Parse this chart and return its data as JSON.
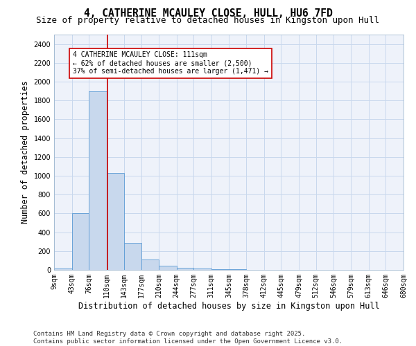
{
  "title": "4, CATHERINE MCAULEY CLOSE, HULL, HU6 7FD",
  "subtitle": "Size of property relative to detached houses in Kingston upon Hull",
  "xlabel": "Distribution of detached houses by size in Kingston upon Hull",
  "ylabel": "Number of detached properties",
  "bar_edges": [
    9,
    43,
    76,
    110,
    143,
    177,
    210,
    244,
    277,
    311,
    345,
    378,
    412,
    445,
    479,
    512,
    546,
    579,
    613,
    646,
    680
  ],
  "bar_heights": [
    15,
    600,
    1900,
    1030,
    290,
    110,
    45,
    20,
    15,
    5,
    5,
    0,
    0,
    0,
    0,
    0,
    0,
    0,
    0,
    0
  ],
  "bar_color": "#c8d8ed",
  "bar_edge_color": "#5b9bd5",
  "grid_color": "#c8d8ed",
  "background_color": "#ffffff",
  "plot_bg_color": "#eef2fa",
  "property_line_x": 111,
  "property_line_color": "#cc0000",
  "annotation_text": "4 CATHERINE MCAULEY CLOSE: 111sqm\n← 62% of detached houses are smaller (2,500)\n37% of semi-detached houses are larger (1,471) →",
  "annotation_box_color": "#ffffff",
  "annotation_box_edge_color": "#cc0000",
  "ylim": [
    0,
    2500
  ],
  "yticks": [
    0,
    200,
    400,
    600,
    800,
    1000,
    1200,
    1400,
    1600,
    1800,
    2000,
    2200,
    2400
  ],
  "tick_labels": [
    "9sqm",
    "43sqm",
    "76sqm",
    "110sqm",
    "143sqm",
    "177sqm",
    "210sqm",
    "244sqm",
    "277sqm",
    "311sqm",
    "345sqm",
    "378sqm",
    "412sqm",
    "445sqm",
    "479sqm",
    "512sqm",
    "546sqm",
    "579sqm",
    "613sqm",
    "646sqm",
    "680sqm"
  ],
  "footer_text": "Contains HM Land Registry data © Crown copyright and database right 2025.\nContains public sector information licensed under the Open Government Licence v3.0.",
  "title_fontsize": 10.5,
  "subtitle_fontsize": 9,
  "axis_label_fontsize": 8.5,
  "tick_fontsize": 7,
  "annotation_fontsize": 7,
  "footer_fontsize": 6.5
}
